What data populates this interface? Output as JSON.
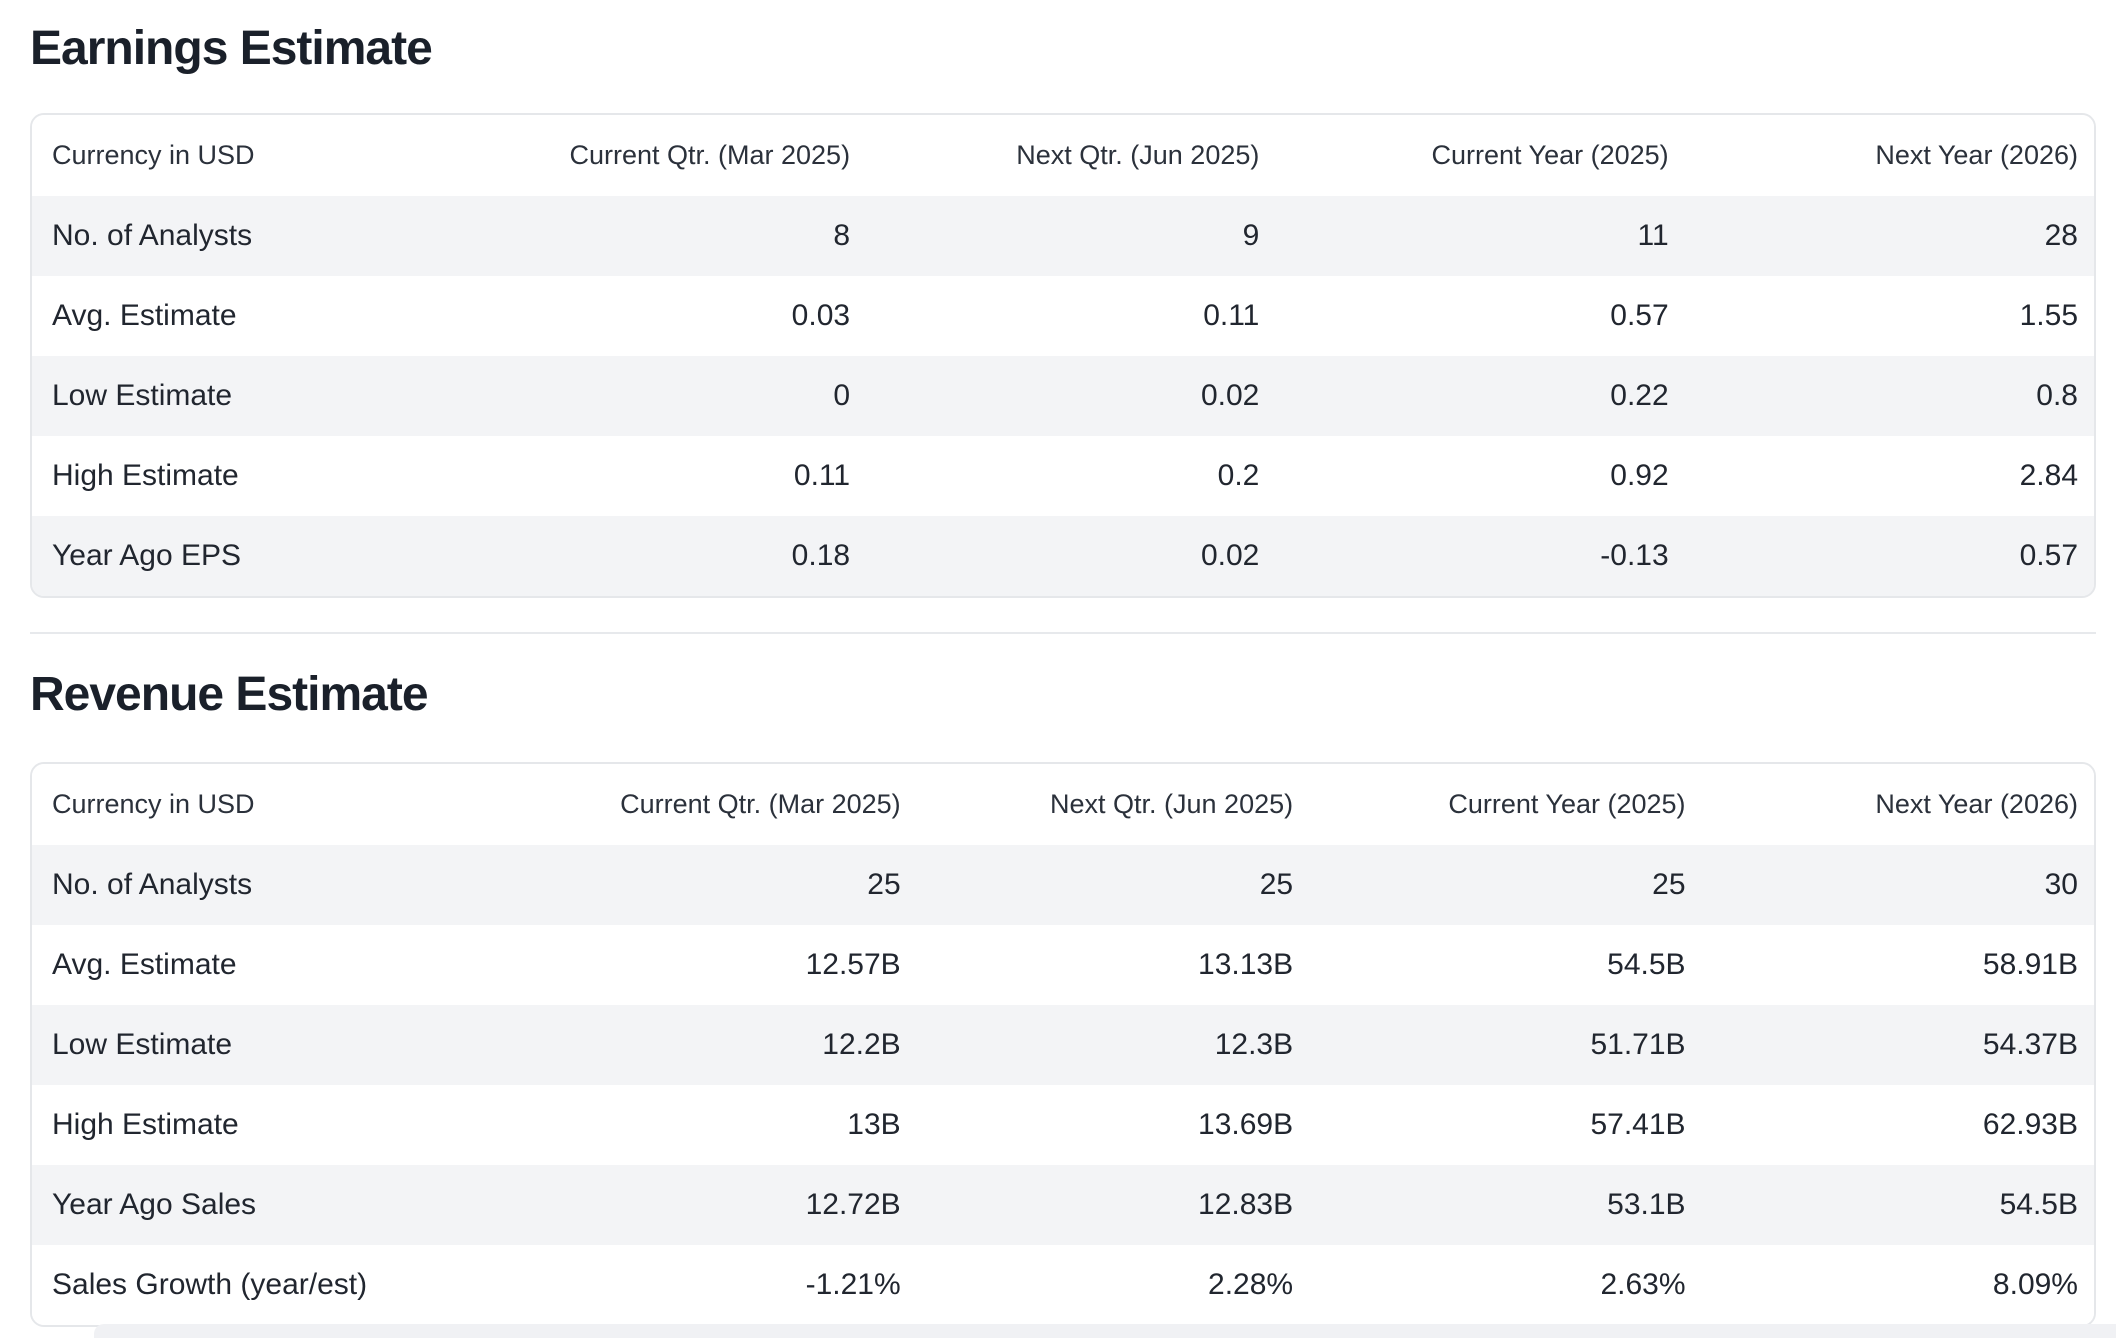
{
  "colors": {
    "stripe": "#f3f4f6",
    "card_border": "#e5e7ea",
    "divider": "#e7e9ec",
    "title_text": "#1a202a",
    "body_text": "#21262f",
    "header_text": "#2b313b"
  },
  "sections": [
    {
      "title": "Earnings Estimate",
      "table": {
        "columns": [
          "Currency in USD",
          "Current Qtr. (Mar 2025)",
          "Next Qtr. (Jun 2025)",
          "Current Year (2025)",
          "Next Year (2026)"
        ],
        "rows": [
          {
            "label": "No. of Analysts",
            "values": [
              "8",
              "9",
              "11",
              "28"
            ]
          },
          {
            "label": "Avg. Estimate",
            "values": [
              "0.03",
              "0.11",
              "0.57",
              "1.55"
            ]
          },
          {
            "label": "Low Estimate",
            "values": [
              "0",
              "0.02",
              "0.22",
              "0.8"
            ]
          },
          {
            "label": "High Estimate",
            "values": [
              "0.11",
              "0.2",
              "0.92",
              "2.84"
            ]
          },
          {
            "label": "Year Ago EPS",
            "values": [
              "0.18",
              "0.02",
              "-0.13",
              "0.57"
            ]
          }
        ]
      }
    },
    {
      "title": "Revenue Estimate",
      "table": {
        "columns": [
          "Currency in USD",
          "Current Qtr. (Mar 2025)",
          "Next Qtr. (Jun 2025)",
          "Current Year (2025)",
          "Next Year (2026)"
        ],
        "rows": [
          {
            "label": "No. of Analysts",
            "values": [
              "25",
              "25",
              "25",
              "30"
            ]
          },
          {
            "label": "Avg. Estimate",
            "values": [
              "12.57B",
              "13.13B",
              "54.5B",
              "58.91B"
            ]
          },
          {
            "label": "Low Estimate",
            "values": [
              "12.2B",
              "12.3B",
              "51.71B",
              "54.37B"
            ]
          },
          {
            "label": "High Estimate",
            "values": [
              "13B",
              "13.69B",
              "57.41B",
              "62.93B"
            ]
          },
          {
            "label": "Year Ago Sales",
            "values": [
              "12.72B",
              "12.83B",
              "53.1B",
              "54.5B"
            ]
          },
          {
            "label": "Sales Growth (year/est)",
            "values": [
              "-1.21%",
              "2.28%",
              "2.63%",
              "8.09%"
            ]
          }
        ]
      }
    }
  ]
}
